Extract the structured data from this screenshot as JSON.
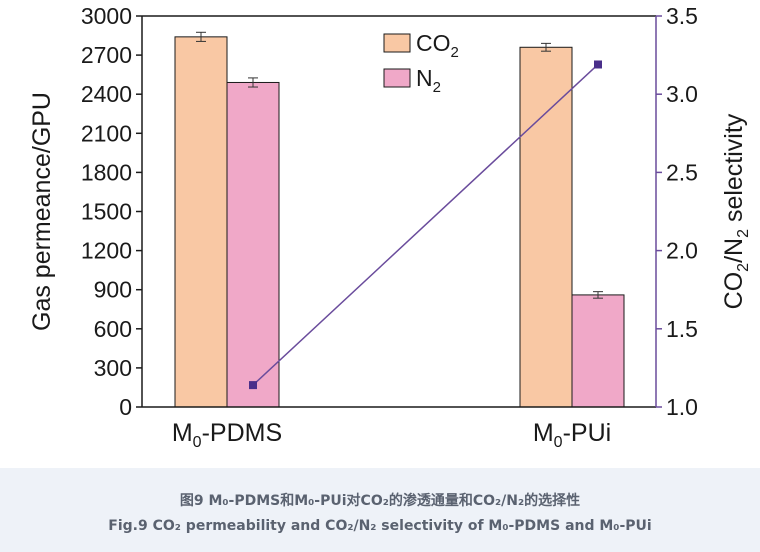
{
  "chart_data": {
    "type": "bar",
    "categories": [
      "M0-PDMS",
      "M0-PUi"
    ],
    "category_labels": [
      {
        "main": "M",
        "sub": "0",
        "rest": "-PDMS"
      },
      {
        "main": "M",
        "sub": "0",
        "rest": "-PUi"
      }
    ],
    "series": [
      {
        "name": "CO2",
        "label_main": "CO",
        "label_sub": "2",
        "values": [
          2840,
          2760
        ],
        "errors": [
          35,
          30
        ],
        "color": "#f9c8a4"
      },
      {
        "name": "N2",
        "label_main": "N",
        "label_sub": "2",
        "values": [
          2490,
          860
        ],
        "errors": [
          35,
          25
        ],
        "color": "#f0a8c8"
      }
    ],
    "line_series": {
      "name": "CO2/N2 selectivity",
      "values": [
        1.14,
        3.19
      ],
      "axis": "right",
      "color": "#6a4c9c"
    },
    "ylabel": "Gas permeance/GPU",
    "y2label": {
      "prefix": "CO",
      "sub1": "2",
      "mid": "/N",
      "sub2": "2",
      "suffix": " selectivity"
    },
    "ylim": [
      0,
      3000
    ],
    "y2lim": [
      1.0,
      3.5
    ],
    "yticks": [
      "0",
      "300",
      "600",
      "900",
      "1200",
      "1500",
      "1800",
      "2100",
      "2400",
      "2700",
      "3000"
    ],
    "y2ticks": [
      "1.0",
      "1.5",
      "2.0",
      "2.5",
      "3.0",
      "3.5"
    ],
    "legend_position": "top-center"
  },
  "caption": {
    "cn": "图9 M₀-PDMS和M₀-PUi对CO₂的渗透通量和CO₂/N₂的选择性",
    "en": "Fig.9 CO₂ permeability and CO₂/N₂ selectivity of M₀-PDMS and M₀-PUi"
  }
}
